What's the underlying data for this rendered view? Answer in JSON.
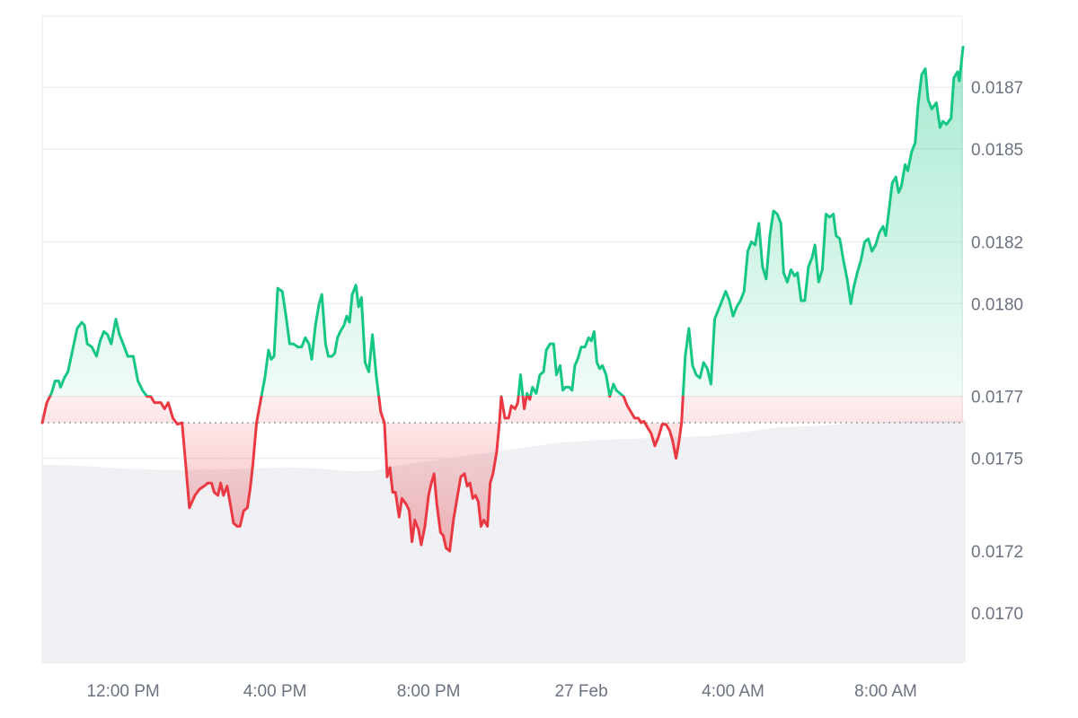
{
  "chart_data": {
    "type": "line",
    "title": "",
    "xlabel": "",
    "ylabel": "",
    "baseline": 0.017615,
    "ylim": [
      0.01684,
      0.01893
    ],
    "xlim": [
      0,
      1000
    ],
    "y_ticks": [
      0.017,
      0.0172,
      0.0175,
      0.0177,
      0.018,
      0.0182,
      0.0185,
      0.0187
    ],
    "y_tick_labels": [
      "0.0170",
      "0.0172",
      "0.0175",
      "0.0177",
      "0.0180",
      "0.0182",
      "0.0185",
      "0.0187"
    ],
    "x_ticks": [
      {
        "x": 88,
        "label": "12:00 PM"
      },
      {
        "x": 253,
        "label": "4:00 PM"
      },
      {
        "x": 420,
        "label": "8:00 PM"
      },
      {
        "x": 586,
        "label": "27 Feb"
      },
      {
        "x": 751,
        "label": "4:00 AM"
      },
      {
        "x": 917,
        "label": "8:00 AM"
      }
    ],
    "colors": {
      "up": "#16c784",
      "down": "#ea3943",
      "volume": "#eef0f3",
      "grid": "#eef0f3",
      "baseline": "#9aa0a6"
    },
    "series": [
      {
        "values": [
          [
            0,
            0.017615
          ],
          [
            5,
            0.01768
          ],
          [
            10,
            0.01771
          ],
          [
            14,
            0.01775
          ],
          [
            18,
            0.01775
          ],
          [
            20,
            0.01773
          ],
          [
            24,
            0.01776
          ],
          [
            28,
            0.01778
          ],
          [
            33,
            0.01785
          ],
          [
            38,
            0.01792
          ],
          [
            43,
            0.01794
          ],
          [
            46,
            0.01793
          ],
          [
            49,
            0.01787
          ],
          [
            54,
            0.01786
          ],
          [
            59,
            0.01783
          ],
          [
            63,
            0.01788
          ],
          [
            67,
            0.01791
          ],
          [
            71,
            0.0179
          ],
          [
            75,
            0.01787
          ],
          [
            80,
            0.01795
          ],
          [
            84,
            0.0179
          ],
          [
            88,
            0.01787
          ],
          [
            93,
            0.01783
          ],
          [
            99,
            0.01783
          ],
          [
            104,
            0.01775
          ],
          [
            109,
            0.01772
          ],
          [
            114,
            0.0177
          ],
          [
            118,
            0.0177
          ],
          [
            122,
            0.01768
          ],
          [
            126,
            0.01768
          ],
          [
            129,
            0.01768
          ],
          [
            133,
            0.01766
          ],
          [
            137,
            0.01768
          ],
          [
            142,
            0.01763
          ],
          [
            147,
            0.01761
          ],
          [
            152,
            0.017615
          ],
          [
            156,
            0.01748
          ],
          [
            160,
            0.01734
          ],
          [
            166,
            0.01738
          ],
          [
            171,
            0.0174
          ],
          [
            176,
            0.01741
          ],
          [
            180,
            0.01742
          ],
          [
            184,
            0.01742
          ],
          [
            187,
            0.01739
          ],
          [
            191,
            0.01738
          ],
          [
            194,
            0.01742
          ],
          [
            197,
            0.01738
          ],
          [
            201,
            0.01741
          ],
          [
            204,
            0.01736
          ],
          [
            208,
            0.01729
          ],
          [
            212,
            0.01728
          ],
          [
            215,
            0.01728
          ],
          [
            219,
            0.01733
          ],
          [
            223,
            0.01734
          ],
          [
            226,
            0.0174
          ],
          [
            229,
            0.01748
          ],
          [
            233,
            0.017615
          ],
          [
            237,
            0.01768
          ],
          [
            242,
            0.01776
          ],
          [
            246,
            0.01785
          ],
          [
            249,
            0.01782
          ],
          [
            252,
            0.01783
          ],
          [
            256,
            0.01805
          ],
          [
            261,
            0.01804
          ],
          [
            265,
            0.01796
          ],
          [
            269,
            0.01787
          ],
          [
            273,
            0.01787
          ],
          [
            278,
            0.01786
          ],
          [
            282,
            0.01786
          ],
          [
            286,
            0.01789
          ],
          [
            290,
            0.01787
          ],
          [
            293,
            0.01782
          ],
          [
            297,
            0.01793
          ],
          [
            301,
            0.018
          ],
          [
            304,
            0.01803
          ],
          [
            308,
            0.01787
          ],
          [
            311,
            0.01783
          ],
          [
            315,
            0.01783
          ],
          [
            318,
            0.01784
          ],
          [
            321,
            0.01789
          ],
          [
            324,
            0.01791
          ],
          [
            328,
            0.01793
          ],
          [
            331,
            0.01796
          ],
          [
            334,
            0.01794
          ],
          [
            337,
            0.01803
          ],
          [
            341,
            0.01806
          ],
          [
            344,
            0.01799
          ],
          [
            347,
            0.01802
          ],
          [
            351,
            0.01781
          ],
          [
            355,
            0.01778
          ],
          [
            359,
            0.0179
          ],
          [
            363,
            0.01777
          ],
          [
            368,
            0.01765
          ],
          [
            372,
            0.017615
          ],
          [
            375,
            0.01744
          ],
          [
            378,
            0.01747
          ],
          [
            381,
            0.01739
          ],
          [
            384,
            0.01739
          ],
          [
            388,
            0.01731
          ],
          [
            391,
            0.01737
          ],
          [
            396,
            0.01735
          ],
          [
            399,
            0.01733
          ],
          [
            402,
            0.01723
          ],
          [
            405,
            0.0173
          ],
          [
            409,
            0.01727
          ],
          [
            412,
            0.01722
          ],
          [
            416,
            0.01728
          ],
          [
            420,
            0.01738
          ],
          [
            423,
            0.01742
          ],
          [
            426,
            0.01745
          ],
          [
            429,
            0.01735
          ],
          [
            433,
            0.01726
          ],
          [
            436,
            0.01725
          ],
          [
            439,
            0.01721
          ],
          [
            443,
            0.0172
          ],
          [
            447,
            0.0173
          ],
          [
            451,
            0.01737
          ],
          [
            455,
            0.01744
          ],
          [
            459,
            0.01745
          ],
          [
            462,
            0.01741
          ],
          [
            465,
            0.01742
          ],
          [
            468,
            0.01737
          ],
          [
            471,
            0.01738
          ],
          [
            474,
            0.01736
          ],
          [
            477,
            0.01728
          ],
          [
            480,
            0.0173
          ],
          [
            484,
            0.01728
          ],
          [
            487,
            0.01742
          ],
          [
            490,
            0.01745
          ],
          [
            494,
            0.01752
          ],
          [
            497,
            0.017615
          ],
          [
            499,
            0.0177
          ],
          [
            503,
            0.01763
          ],
          [
            507,
            0.01763
          ],
          [
            510,
            0.01767
          ],
          [
            514,
            0.01766
          ],
          [
            517,
            0.01768
          ],
          [
            520,
            0.01777
          ],
          [
            524,
            0.01766
          ],
          [
            527,
            0.01771
          ],
          [
            530,
            0.01769
          ],
          [
            533,
            0.01773
          ],
          [
            537,
            0.01771
          ],
          [
            541,
            0.01777
          ],
          [
            545,
            0.01778
          ],
          [
            548,
            0.01785
          ],
          [
            552,
            0.01787
          ],
          [
            556,
            0.01787
          ],
          [
            559,
            0.01777
          ],
          [
            563,
            0.0178
          ],
          [
            566,
            0.01772
          ],
          [
            569,
            0.01773
          ],
          [
            573,
            0.01773
          ],
          [
            576,
            0.01772
          ],
          [
            579,
            0.0178
          ],
          [
            582,
            0.01782
          ],
          [
            586,
            0.01786
          ],
          [
            590,
            0.01786
          ],
          [
            594,
            0.01789
          ],
          [
            597,
            0.01788
          ],
          [
            600,
            0.01791
          ],
          [
            603,
            0.01781
          ],
          [
            606,
            0.01779
          ],
          [
            609,
            0.0178
          ],
          [
            613,
            0.01777
          ],
          [
            617,
            0.0177
          ],
          [
            621,
            0.01774
          ],
          [
            624,
            0.01772
          ],
          [
            628,
            0.01771
          ],
          [
            632,
            0.0177
          ],
          [
            636,
            0.01767
          ],
          [
            640,
            0.01765
          ],
          [
            644,
            0.01763
          ],
          [
            648,
            0.01763
          ],
          [
            651,
            0.017615
          ],
          [
            654,
            0.01762
          ],
          [
            658,
            0.0176
          ],
          [
            662,
            0.01758
          ],
          [
            666,
            0.01754
          ],
          [
            670,
            0.01757
          ],
          [
            674,
            0.01761
          ],
          [
            678,
            0.01761
          ],
          [
            682,
            0.01759
          ],
          [
            685,
            0.01756
          ],
          [
            689,
            0.0175
          ],
          [
            692,
            0.01755
          ],
          [
            695,
            0.017615
          ],
          [
            699,
            0.01783
          ],
          [
            703,
            0.01792
          ],
          [
            707,
            0.0178
          ],
          [
            711,
            0.01777
          ],
          [
            715,
            0.01776
          ],
          [
            719,
            0.01781
          ],
          [
            723,
            0.01779
          ],
          [
            727,
            0.01774
          ],
          [
            731,
            0.01795
          ],
          [
            735,
            0.01798
          ],
          [
            739,
            0.01801
          ],
          [
            743,
            0.01804
          ],
          [
            747,
            0.01801
          ],
          [
            751,
            0.01796
          ],
          [
            755,
            0.01799
          ],
          [
            759,
            0.01801
          ],
          [
            763,
            0.01804
          ],
          [
            767,
            0.01817
          ],
          [
            771,
            0.0182
          ],
          [
            775,
            0.01819
          ],
          [
            779,
            0.01826
          ],
          [
            783,
            0.01812
          ],
          [
            787,
            0.01808
          ],
          [
            791,
            0.01822
          ],
          [
            795,
            0.0183
          ],
          [
            799,
            0.01829
          ],
          [
            803,
            0.01826
          ],
          [
            806,
            0.0181
          ],
          [
            810,
            0.01807
          ],
          [
            814,
            0.01811
          ],
          [
            818,
            0.01809
          ],
          [
            821,
            0.0181
          ],
          [
            825,
            0.01801
          ],
          [
            829,
            0.01801
          ],
          [
            833,
            0.01812
          ],
          [
            837,
            0.01815
          ],
          [
            840,
            0.01819
          ],
          [
            844,
            0.01807
          ],
          [
            848,
            0.01811
          ],
          [
            852,
            0.01829
          ],
          [
            856,
            0.01828
          ],
          [
            860,
            0.01829
          ],
          [
            863,
            0.01822
          ],
          [
            867,
            0.01821
          ],
          [
            871,
            0.01814
          ],
          [
            875,
            0.01808
          ],
          [
            879,
            0.018
          ],
          [
            882,
            0.01805
          ],
          [
            886,
            0.0181
          ],
          [
            890,
            0.01814
          ],
          [
            894,
            0.0182
          ],
          [
            898,
            0.01821
          ],
          [
            902,
            0.01817
          ],
          [
            906,
            0.01819
          ],
          [
            910,
            0.01823
          ],
          [
            914,
            0.01825
          ],
          [
            917,
            0.01822
          ],
          [
            920,
            0.01829
          ],
          [
            924,
            0.01839
          ],
          [
            928,
            0.01841
          ],
          [
            931,
            0.01836
          ],
          [
            934,
            0.01838
          ],
          [
            938,
            0.01845
          ],
          [
            941,
            0.01843
          ],
          [
            945,
            0.01849
          ],
          [
            949,
            0.01852
          ],
          [
            952,
            0.01864
          ],
          [
            956,
            0.01874
          ],
          [
            960,
            0.01876
          ],
          [
            963,
            0.01866
          ],
          [
            967,
            0.01863
          ],
          [
            972,
            0.01865
          ],
          [
            976,
            0.01857
          ],
          [
            979,
            0.01859
          ],
          [
            983,
            0.01858
          ],
          [
            988,
            0.0186
          ],
          [
            991,
            0.01873
          ],
          [
            995,
            0.01875
          ],
          [
            997,
            0.01872
          ],
          [
            1001,
            0.01883
          ]
        ]
      }
    ],
    "volume": [
      [
        0,
        0.0153
      ],
      [
        42,
        0.0152
      ],
      [
        85,
        0.015
      ],
      [
        130,
        0.0149
      ],
      [
        190,
        0.0149
      ],
      [
        230,
        0.015
      ],
      [
        262,
        0.0151
      ],
      [
        298,
        0.015
      ],
      [
        330,
        0.0148
      ],
      [
        355,
        0.0148
      ],
      [
        382,
        0.0152
      ],
      [
        420,
        0.0156
      ],
      [
        470,
        0.0161
      ],
      [
        520,
        0.0166
      ],
      [
        560,
        0.017
      ],
      [
        600,
        0.0172
      ],
      [
        640,
        0.0173
      ],
      [
        680,
        0.0174
      ],
      [
        720,
        0.0175
      ],
      [
        760,
        0.0178
      ],
      [
        800,
        0.0182
      ],
      [
        840,
        0.0183
      ],
      [
        880,
        0.0185
      ],
      [
        920,
        0.0186
      ],
      [
        960,
        0.0187
      ],
      [
        1001,
        0.0187
      ]
    ],
    "volume_ylim": [
      0,
      0.05
    ]
  }
}
